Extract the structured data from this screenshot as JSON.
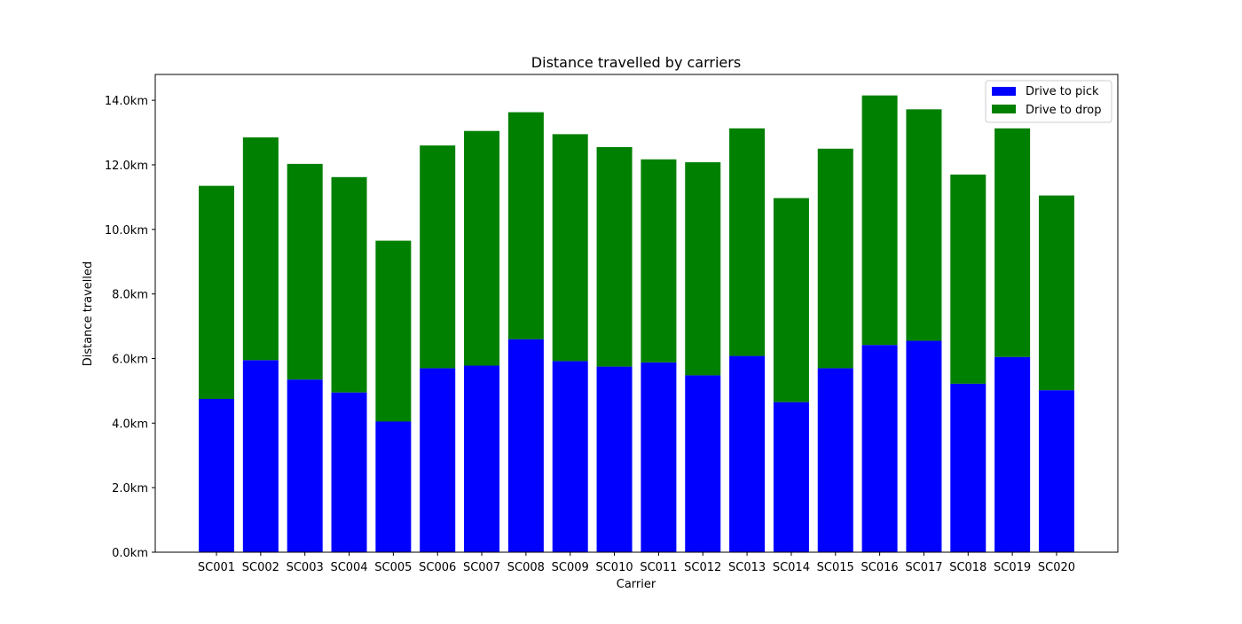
{
  "chart_data": {
    "type": "bar",
    "stacked": true,
    "title": "Distance travelled by carriers",
    "xlabel": "Carrier",
    "ylabel": "Distance travelled",
    "categories": [
      "SC001",
      "SC002",
      "SC003",
      "SC004",
      "SC005",
      "SC006",
      "SC007",
      "SC008",
      "SC009",
      "SC010",
      "SC011",
      "SC012",
      "SC013",
      "SC014",
      "SC015",
      "SC016",
      "SC017",
      "SC018",
      "SC019",
      "SC020"
    ],
    "series": [
      {
        "name": "Drive to pick",
        "color": "#0000ff",
        "values": [
          4.75,
          5.95,
          5.35,
          4.95,
          4.05,
          5.7,
          5.78,
          6.6,
          5.92,
          5.75,
          5.88,
          5.48,
          6.08,
          4.65,
          5.7,
          6.42,
          6.55,
          5.22,
          6.05,
          5.02
        ]
      },
      {
        "name": "Drive to drop",
        "color": "#008000",
        "values": [
          6.6,
          6.9,
          6.68,
          6.67,
          5.6,
          6.9,
          7.27,
          7.03,
          7.03,
          6.8,
          6.29,
          6.6,
          7.05,
          6.32,
          6.8,
          7.73,
          7.17,
          6.48,
          7.08,
          6.03
        ]
      }
    ],
    "ylim": [
      0,
      14.8
    ],
    "yticks": [
      0,
      2,
      4,
      6,
      8,
      10,
      12,
      14
    ],
    "ytick_labels": [
      "0.0km",
      "2.0km",
      "4.0km",
      "6.0km",
      "8.0km",
      "10.0km",
      "12.0km",
      "14.0km"
    ],
    "legend_position": "top-right",
    "grid": false
  }
}
